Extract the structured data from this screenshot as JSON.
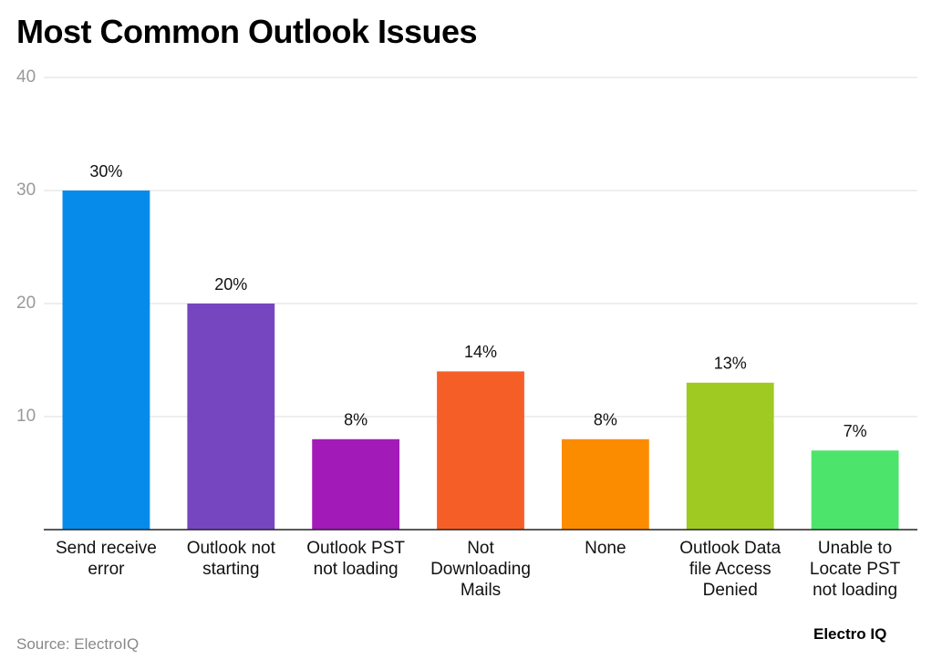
{
  "chart_data": {
    "type": "bar",
    "title": "Most Common Outlook Issues",
    "categories": [
      "Send receive error",
      "Outlook not starting",
      "Outlook PST not loading",
      "Not Downloading Mails",
      "None",
      "Outlook Data file Access Denied",
      "Unable to Locate PST not loading"
    ],
    "values": [
      30,
      20,
      8,
      14,
      8,
      13,
      7
    ],
    "value_labels": [
      "30%",
      "20%",
      "8%",
      "14%",
      "8%",
      "13%",
      "7%"
    ],
    "colors": [
      "#078bea",
      "#7646c0",
      "#a21ab8",
      "#f55f27",
      "#fb8c00",
      "#9fca22",
      "#4de46c"
    ],
    "ylim": [
      0,
      40
    ],
    "yticks": [
      10,
      20,
      30,
      40
    ],
    "grid": true,
    "source": "Source: ElectroIQ",
    "logo": "Electro IQ"
  }
}
